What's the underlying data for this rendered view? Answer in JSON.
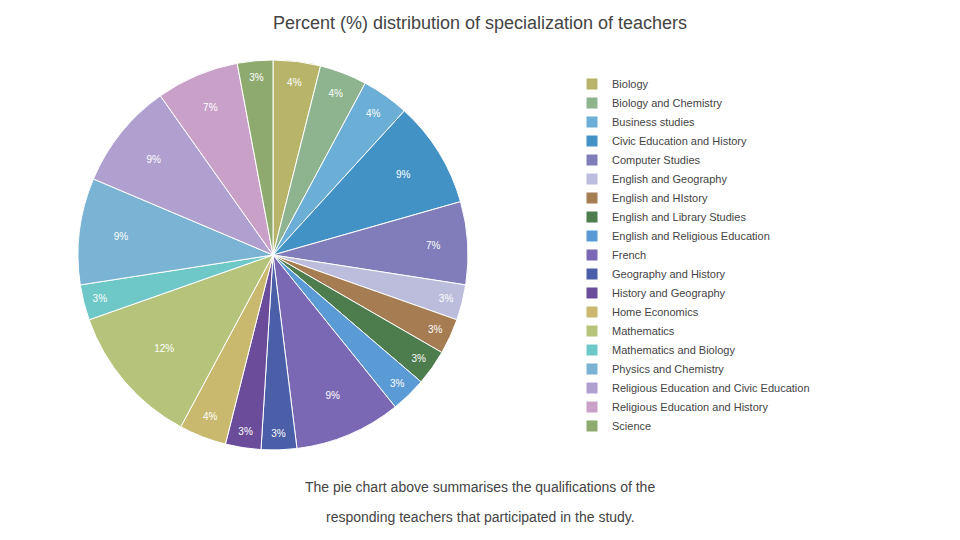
{
  "chart_data": {
    "type": "pie",
    "title": "Percent (%) distribution of specialization of teachers",
    "categories": [
      "Biology",
      "Biology and Chemistry",
      "Business studies",
      "Civic Education and History",
      "Computer Studies",
      "English and Geography",
      "English and HIstory",
      "English and Library Studies",
      "English and Religious Education",
      "French",
      "Geography and History",
      "History and Geography",
      "Home Economics",
      "Mathematics",
      "Mathematics and Biology",
      "Physics and Chemistry",
      "Religious Education and Civic Education",
      "Religious Education and History",
      "Science"
    ],
    "values": [
      4,
      4,
      4,
      9,
      7,
      3,
      3,
      3,
      3,
      9,
      3,
      3,
      4,
      12,
      3,
      9,
      9,
      7,
      3
    ],
    "value_labels": [
      "4%",
      "4%",
      "4%",
      "9%",
      "7%",
      "3%",
      "3%",
      "3%",
      "3%",
      "9%",
      "3%",
      "3%",
      "4%",
      "12%",
      "3%",
      "9%",
      "9%",
      "7%",
      "3%"
    ],
    "colors": [
      "#b8b56a",
      "#8db48e",
      "#6baed6",
      "#4292c6",
      "#807dba",
      "#bcbddc",
      "#a67c52",
      "#4d7c4d",
      "#5b9bd5",
      "#7b68b5",
      "#4a5fa8",
      "#6b4c9a",
      "#c8b96e",
      "#b5c47a",
      "#6fc8c8",
      "#7ab3d4",
      "#b0a0d0",
      "#c8a0c8",
      "#8faa6e"
    ],
    "data_labels": true,
    "legend": "right",
    "annotations": [
      "The pie chart above summarises the qualifications of the",
      "responding teachers that participated in the study."
    ]
  }
}
